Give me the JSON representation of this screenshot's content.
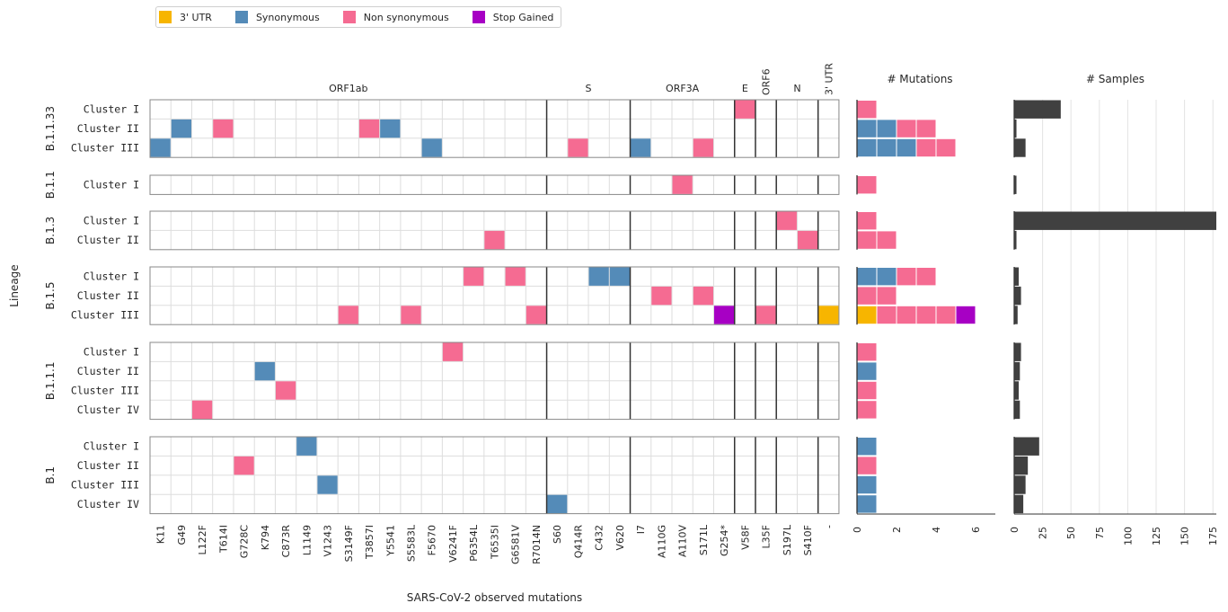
{
  "legend": [
    {
      "label": "3' UTR",
      "color": "#f7b500"
    },
    {
      "label": "Synonymous",
      "color": "#548bb8"
    },
    {
      "label": "Non synonymous",
      "color": "#f56b92"
    },
    {
      "label": "Stop Gained",
      "color": "#a700c4"
    }
  ],
  "chart_data": {
    "type": "heatmap",
    "xlabel": "SARS-CoV-2 observed mutations",
    "ylabel": "Lineage",
    "genes": [
      {
        "name": "ORF1ab",
        "start": 0,
        "end": 19
      },
      {
        "name": "S",
        "start": 19,
        "end": 23
      },
      {
        "name": "ORF3A",
        "start": 23,
        "end": 28
      },
      {
        "name": "E",
        "start": 28,
        "end": 29
      },
      {
        "name": "ORF6",
        "start": 29,
        "end": 30
      },
      {
        "name": "N",
        "start": 30,
        "end": 32
      },
      {
        "name": "3' UTR",
        "start": 32,
        "end": 33
      }
    ],
    "mutations": [
      "K11",
      "G49",
      "L122F",
      "T614I",
      "G728C",
      "K794",
      "C873R",
      "L1149",
      "V1243",
      "S3149F",
      "T3857I",
      "Y5541",
      "S5583L",
      "F5670",
      "V6241F",
      "P6354L",
      "T6535I",
      "G6581V",
      "R7014N",
      "S60",
      "Q414R",
      "C432",
      "V620",
      "I7",
      "A110G",
      "A110V",
      "S171L",
      "G254*",
      "V58F",
      "L35F",
      "S197L",
      "S410F",
      "-"
    ],
    "lineages": [
      {
        "name": "B.1.1.33",
        "clusters": [
          {
            "label": "Cluster I",
            "cells": [
              [
                28,
                "ns"
              ]
            ],
            "mutation_counts": [
              "ns"
            ],
            "samples": 41
          },
          {
            "label": "Cluster II",
            "cells": [
              [
                1,
                "syn"
              ],
              [
                3,
                "ns"
              ],
              [
                10,
                "ns"
              ],
              [
                11,
                "syn"
              ]
            ],
            "mutation_counts": [
              "syn",
              "syn",
              "ns",
              "ns"
            ],
            "samples": 2
          },
          {
            "label": "Cluster III",
            "cells": [
              [
                0,
                "syn"
              ],
              [
                13,
                "syn"
              ],
              [
                20,
                "ns"
              ],
              [
                23,
                "syn"
              ],
              [
                26,
                "ns"
              ]
            ],
            "mutation_counts": [
              "syn",
              "syn",
              "syn",
              "ns",
              "ns"
            ],
            "samples": 10
          }
        ]
      },
      {
        "name": "B.1.1",
        "clusters": [
          {
            "label": "Cluster I",
            "cells": [
              [
                25,
                "ns"
              ]
            ],
            "mutation_counts": [
              "ns"
            ],
            "samples": 2
          }
        ]
      },
      {
        "name": "B.1.3",
        "clusters": [
          {
            "label": "Cluster I",
            "cells": [
              [
                30,
                "ns"
              ]
            ],
            "mutation_counts": [
              "ns"
            ],
            "samples": 178
          },
          {
            "label": "Cluster II",
            "cells": [
              [
                16,
                "ns"
              ],
              [
                31,
                "ns"
              ]
            ],
            "mutation_counts": [
              "ns",
              "ns"
            ],
            "samples": 2
          }
        ]
      },
      {
        "name": "B.1.5",
        "clusters": [
          {
            "label": "Cluster I",
            "cells": [
              [
                15,
                "ns"
              ],
              [
                17,
                "ns"
              ],
              [
                21,
                "syn"
              ],
              [
                22,
                "syn"
              ]
            ],
            "mutation_counts": [
              "syn",
              "syn",
              "ns",
              "ns"
            ],
            "samples": 4
          },
          {
            "label": "Cluster II",
            "cells": [
              [
                24,
                "ns"
              ],
              [
                26,
                "ns"
              ]
            ],
            "mutation_counts": [
              "ns",
              "ns"
            ],
            "samples": 6
          },
          {
            "label": "Cluster III",
            "cells": [
              [
                9,
                "ns"
              ],
              [
                12,
                "ns"
              ],
              [
                18,
                "ns"
              ],
              [
                27,
                "stop"
              ],
              [
                29,
                "ns"
              ],
              [
                32,
                "utr"
              ]
            ],
            "mutation_counts": [
              "utr",
              "ns",
              "ns",
              "ns",
              "ns",
              "stop"
            ],
            "samples": 3
          }
        ]
      },
      {
        "name": "B.1.1.1",
        "clusters": [
          {
            "label": "Cluster I",
            "cells": [
              [
                14,
                "ns"
              ]
            ],
            "mutation_counts": [
              "ns"
            ],
            "samples": 6
          },
          {
            "label": "Cluster II",
            "cells": [
              [
                5,
                "syn"
              ]
            ],
            "mutation_counts": [
              "syn"
            ],
            "samples": 5
          },
          {
            "label": "Cluster III",
            "cells": [
              [
                6,
                "ns"
              ]
            ],
            "mutation_counts": [
              "ns"
            ],
            "samples": 4
          },
          {
            "label": "Cluster IV",
            "cells": [
              [
                2,
                "ns"
              ]
            ],
            "mutation_counts": [
              "ns"
            ],
            "samples": 5
          }
        ]
      },
      {
        "name": "B.1",
        "clusters": [
          {
            "label": "Cluster I",
            "cells": [
              [
                7,
                "syn"
              ]
            ],
            "mutation_counts": [
              "syn"
            ],
            "samples": 22
          },
          {
            "label": "Cluster II",
            "cells": [
              [
                4,
                "ns"
              ]
            ],
            "mutation_counts": [
              "ns"
            ],
            "samples": 12
          },
          {
            "label": "Cluster III",
            "cells": [
              [
                8,
                "syn"
              ]
            ],
            "mutation_counts": [
              "syn"
            ],
            "samples": 10
          },
          {
            "label": "Cluster IV",
            "cells": [
              [
                19,
                "syn"
              ]
            ],
            "mutation_counts": [
              "syn"
            ],
            "samples": 8
          }
        ]
      }
    ],
    "mutations_panel": {
      "title": "# Mutations",
      "xlim": [
        0,
        7
      ],
      "ticks": [
        0,
        2,
        4,
        6
      ]
    },
    "samples_panel": {
      "title": "# Samples",
      "xlim": [
        0,
        178
      ],
      "ticks": [
        0,
        25,
        50,
        75,
        100,
        125,
        150,
        175
      ]
    },
    "category_colors": {
      "utr": "#f7b500",
      "syn": "#548bb8",
      "ns": "#f56b92",
      "stop": "#a700c4"
    },
    "bar_color": "#404040"
  }
}
